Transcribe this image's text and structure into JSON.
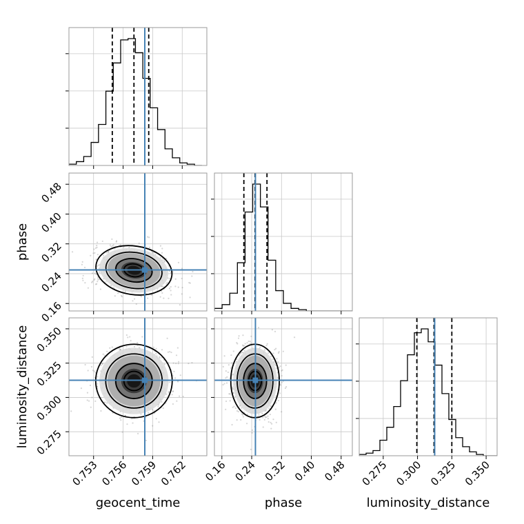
{
  "chart_data": {
    "type": "corner",
    "parameters": [
      {
        "key": "geocent_time",
        "label": "geocent_time",
        "range": [
          0.7505,
          0.7645
        ],
        "ticks": [
          0.753,
          0.756,
          0.759,
          0.762
        ],
        "tick_labels": [
          "0.753",
          "0.756",
          "0.759",
          "0.762"
        ],
        "truth": 0.7582,
        "quantiles": [
          0.7549,
          0.7571,
          0.7586
        ],
        "hist_range": [
          0.7505,
          0.764
        ],
        "hist_values": [
          1,
          3,
          7,
          18,
          32,
          58,
          80,
          98,
          99,
          88,
          68,
          45,
          28,
          13,
          6,
          2,
          1,
          0
        ]
      },
      {
        "key": "phase",
        "label": "phase",
        "range": [
          0.14,
          0.51
        ],
        "ticks": [
          0.16,
          0.24,
          0.32,
          0.4,
          0.48
        ],
        "tick_labels": [
          "0.16",
          "0.24",
          "0.32",
          "0.40",
          "0.48"
        ],
        "truth": 0.25,
        "quantiles": [
          0.219,
          0.249,
          0.281
        ],
        "hist_range": [
          0.14,
          0.51
        ],
        "hist_values": [
          2,
          5,
          14,
          38,
          78,
          100,
          82,
          40,
          16,
          6,
          2,
          1,
          0,
          0,
          0,
          0,
          0,
          0
        ]
      },
      {
        "key": "luminosity_distance",
        "label": "luminosity_distance",
        "range": [
          0.2575,
          0.358
        ],
        "ticks": [
          0.275,
          0.3,
          0.325,
          0.35
        ],
        "tick_labels": [
          "0.275",
          "0.300",
          "0.325",
          "0.350"
        ],
        "truth": 0.3125,
        "quantiles": [
          0.2995,
          0.312,
          0.325
        ],
        "hist_range": [
          0.2575,
          0.358
        ],
        "hist_values": [
          1,
          2,
          4,
          12,
          22,
          38,
          58,
          78,
          95,
          98,
          88,
          70,
          48,
          28,
          14,
          7,
          3,
          1,
          0,
          0
        ]
      }
    ],
    "title": "",
    "grid": true,
    "truth_color": "#4682b4",
    "hist_color": "#000000"
  }
}
